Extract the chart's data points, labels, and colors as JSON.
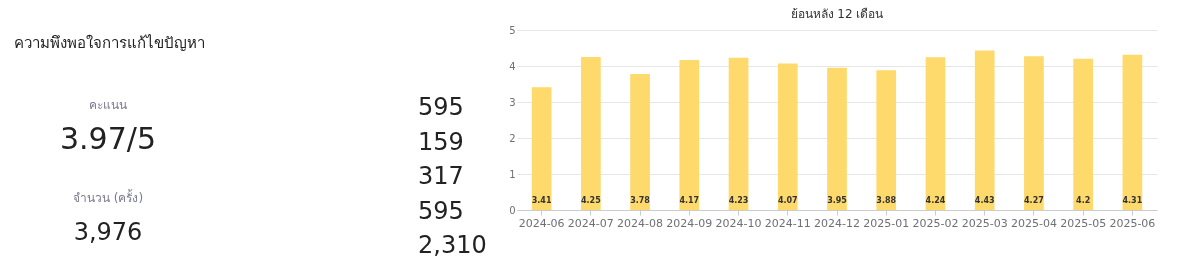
{
  "chart_data": [
    {
      "type": "other",
      "title": "ความพึงพอใจการแก้ไขปัญหา",
      "annotations": [
        "คะแนน",
        "3.97/5",
        "จำนวน (ครั้ง)",
        "3,976",
        "595",
        "159",
        "317",
        "595",
        "2,310"
      ]
    },
    {
      "type": "bar",
      "title": "ย้อนหลัง 12 เดือน",
      "categories": [
        "2024-06",
        "2024-07",
        "2024-08",
        "2024-09",
        "2024-10",
        "2024-11",
        "2024-12",
        "2025-01",
        "2025-02",
        "2025-03",
        "2025-04",
        "2025-05",
        "2025-06"
      ],
      "values": [
        3.41,
        4.25,
        3.78,
        4.17,
        4.23,
        4.07,
        3.95,
        3.88,
        4.24,
        4.43,
        4.27,
        4.2,
        4.31
      ],
      "color": "#fed96b",
      "ylim": [
        0,
        5
      ],
      "yticks": [
        0,
        1,
        2,
        3,
        4,
        5
      ],
      "grid": "y",
      "data_labels": true
    }
  ]
}
